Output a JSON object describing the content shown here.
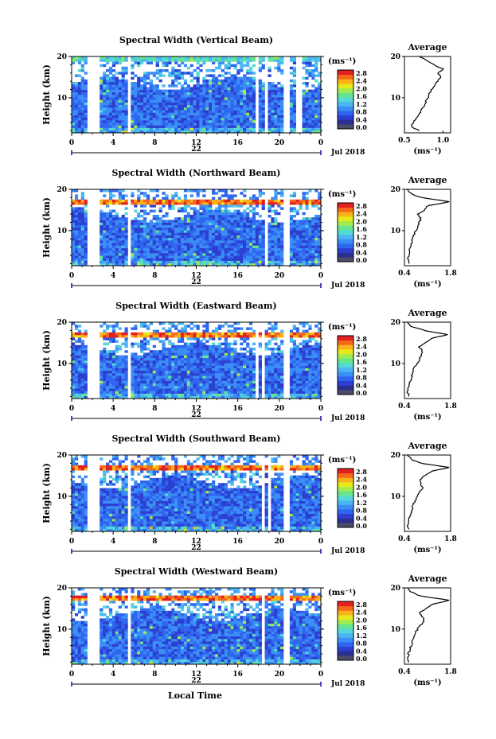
{
  "colors": {
    "background": "#ffffff",
    "colormap": [
      "#2b2f8f",
      "#2c3fd0",
      "#2f66ef",
      "#3a8ef6",
      "#4cb6f2",
      "#54d9d6",
      "#67e58e",
      "#a3ec4f",
      "#e6e91a",
      "#fbb21a",
      "#f56a1a",
      "#e32020"
    ],
    "colorbar_bottom": "#4b4b6a",
    "gap": "#ffffff",
    "axis": "#000000",
    "profile_line": "#000000",
    "accent_bar": "#5a3bbf"
  },
  "x_tick_labels": [
    "0",
    "4",
    "8",
    "12",
    "16",
    "20",
    "0"
  ],
  "y_tick_labels": [
    "20",
    "10"
  ],
  "date_label": "Jul 2018",
  "x_axis_title": "Local Time",
  "colorbar": {
    "unit_label": "(ms⁻¹)",
    "tick_labels": [
      "2.8",
      "2.4",
      "2.0",
      "1.6",
      "1.2",
      "0.8",
      "0.4",
      "0.0"
    ]
  },
  "profile_unit_label": "(ms⁻¹)",
  "panels": [
    {
      "title": "Spectral Width (Vertical Beam)",
      "ylabel": "Height (km)",
      "day_label": "22",
      "profile_title": "Average",
      "profile_x_ticks": [
        "0.5",
        "1.0"
      ],
      "profile_y_ticks": [
        "20",
        "10"
      ]
    },
    {
      "title": "Spectral Width (Northward Beam)",
      "ylabel": "Height (km)",
      "day_label": "22",
      "profile_title": "Average",
      "profile_x_ticks": [
        "0.4",
        "1.8"
      ],
      "profile_y_ticks": [
        "20",
        "10"
      ]
    },
    {
      "title": "Spectral Width (Eastward Beam)",
      "ylabel": "Height (km)",
      "day_label": "22",
      "profile_title": "Average",
      "profile_x_ticks": [
        "0.4",
        "1.8"
      ],
      "profile_y_ticks": [
        "20",
        "10"
      ]
    },
    {
      "title": "Spectral Width (Southward Beam)",
      "ylabel": "Height (km)",
      "day_label": "22",
      "profile_title": "Average",
      "profile_x_ticks": [
        "0.4",
        "1.8"
      ],
      "profile_y_ticks": [
        "20",
        "10"
      ]
    },
    {
      "title": "Spectral Width (Westward Beam)",
      "ylabel": "Height (km)",
      "day_label": "22",
      "profile_title": "Average",
      "profile_x_ticks": [
        "0.4",
        "1.8"
      ],
      "profile_y_ticks": [
        "20",
        "10"
      ]
    }
  ],
  "chart_data": [
    {
      "type": "heatmap",
      "title": "Spectral Width (Vertical Beam)",
      "xlabel": "",
      "ylabel": "Height (km)",
      "date": "Jul 2018",
      "x_range_hours": [
        0,
        24
      ],
      "y_range_km": [
        1.5,
        20
      ],
      "color_range_ms": [
        0.0,
        3.0
      ],
      "data_gaps_hours": [
        [
          1.4,
          2.6
        ],
        [
          5.4,
          5.8
        ],
        [
          17.7,
          17.9
        ],
        [
          18.5,
          18.8
        ],
        [
          20.3,
          20.9
        ],
        [
          21.7,
          22.2
        ]
      ],
      "band_top_km": 19.5,
      "band_top_value": 1.0,
      "average_profile": {
        "x_range_ms": [
          0.5,
          1.1
        ],
        "x_ticks": [
          0.5,
          1.0
        ],
        "height_km": [
          2.0,
          3.0,
          4.0,
          5.0,
          6.0,
          7.0,
          8.0,
          9.0,
          10.0,
          11.0,
          12.0,
          13.0,
          14.0,
          15.0,
          16.0,
          17.0,
          18.0,
          19.0,
          20.0
        ],
        "width_ms": [
          0.7,
          0.58,
          0.62,
          0.65,
          0.68,
          0.72,
          0.75,
          0.78,
          0.8,
          0.82,
          0.85,
          0.9,
          0.93,
          0.97,
          0.94,
          1.0,
          0.88,
          0.8,
          0.7
        ]
      }
    },
    {
      "type": "heatmap",
      "title": "Spectral Width (Northward Beam)",
      "xlabel": "",
      "ylabel": "Height (km)",
      "date": "Jul 2018",
      "x_range_hours": [
        0,
        24
      ],
      "y_range_km": [
        1.5,
        20
      ],
      "color_range_ms": [
        0.0,
        3.0
      ],
      "data_gaps_hours": [
        [
          1.4,
          2.6
        ],
        [
          5.4,
          5.8
        ],
        [
          17.6,
          17.8
        ],
        [
          18.6,
          19.0
        ],
        [
          20.3,
          20.9
        ]
      ],
      "band_top_km": 17.0,
      "band_top_value": 2.2,
      "average_profile": {
        "x_range_ms": [
          0.4,
          1.8
        ],
        "x_ticks": [
          0.4,
          1.8
        ],
        "height_km": [
          2.0,
          3.0,
          4.0,
          5.0,
          6.0,
          7.0,
          8.0,
          9.0,
          10.0,
          11.0,
          12.0,
          13.0,
          14.0,
          15.0,
          16.0,
          17.0,
          18.0,
          19.0,
          20.0
        ],
        "width_ms": [
          0.55,
          0.5,
          0.52,
          0.56,
          0.58,
          0.62,
          0.65,
          0.7,
          0.75,
          0.8,
          0.85,
          0.9,
          0.8,
          1.0,
          1.1,
          1.75,
          0.9,
          0.6,
          0.5
        ]
      }
    },
    {
      "type": "heatmap",
      "title": "Spectral Width (Eastward Beam)",
      "xlabel": "",
      "ylabel": "Height (km)",
      "date": "Jul 2018",
      "x_range_hours": [
        0,
        24
      ],
      "y_range_km": [
        1.5,
        20
      ],
      "color_range_ms": [
        0.0,
        3.0
      ],
      "data_gaps_hours": [
        [
          1.4,
          2.6
        ],
        [
          5.4,
          5.8
        ],
        [
          17.7,
          17.9
        ],
        [
          18.4,
          18.6
        ],
        [
          20.3,
          20.9
        ]
      ],
      "band_top_km": 17.0,
      "band_top_value": 2.2,
      "average_profile": {
        "x_range_ms": [
          0.4,
          1.8
        ],
        "x_ticks": [
          0.4,
          1.8
        ],
        "height_km": [
          2.0,
          3.0,
          4.0,
          5.0,
          6.0,
          7.0,
          8.0,
          9.0,
          10.0,
          11.0,
          12.0,
          13.0,
          14.0,
          15.0,
          16.0,
          17.0,
          18.0,
          19.0,
          20.0
        ],
        "width_ms": [
          0.55,
          0.5,
          0.52,
          0.55,
          0.58,
          0.62,
          0.65,
          0.7,
          0.78,
          0.85,
          0.9,
          0.95,
          0.85,
          1.05,
          1.2,
          1.7,
          1.0,
          0.6,
          0.5
        ]
      }
    },
    {
      "type": "heatmap",
      "title": "Spectral Width (Southward Beam)",
      "xlabel": "",
      "ylabel": "Height (km)",
      "date": "Jul 2018",
      "x_range_hours": [
        0,
        24
      ],
      "y_range_km": [
        1.5,
        20
      ],
      "color_range_ms": [
        0.0,
        3.0
      ],
      "data_gaps_hours": [
        [
          1.4,
          2.6
        ],
        [
          5.4,
          5.8
        ],
        [
          17.6,
          17.8
        ],
        [
          18.3,
          18.5
        ],
        [
          19.0,
          19.3
        ],
        [
          20.3,
          20.9
        ]
      ],
      "band_top_km": 17.0,
      "band_top_value": 2.2,
      "average_profile": {
        "x_range_ms": [
          0.4,
          1.8
        ],
        "x_ticks": [
          0.4,
          1.8
        ],
        "height_km": [
          2.0,
          3.0,
          4.0,
          5.0,
          6.0,
          7.0,
          8.0,
          9.0,
          10.0,
          11.0,
          12.0,
          13.0,
          14.0,
          15.0,
          16.0,
          17.0,
          18.0,
          19.0,
          20.0
        ],
        "width_ms": [
          0.55,
          0.5,
          0.52,
          0.56,
          0.6,
          0.64,
          0.68,
          0.72,
          0.8,
          0.88,
          0.95,
          0.9,
          0.85,
          1.0,
          1.2,
          1.75,
          0.9,
          0.6,
          0.5
        ]
      }
    },
    {
      "type": "heatmap",
      "title": "Spectral Width (Westward Beam)",
      "xlabel": "Local Time",
      "ylabel": "Height (km)",
      "date": "Jul 2018",
      "x_range_hours": [
        0,
        24
      ],
      "y_range_km": [
        1.5,
        20
      ],
      "color_range_ms": [
        0.0,
        3.0
      ],
      "data_gaps_hours": [
        [
          1.4,
          2.6
        ],
        [
          5.4,
          5.8
        ],
        [
          17.6,
          17.8
        ],
        [
          18.4,
          18.7
        ],
        [
          20.3,
          20.9
        ]
      ],
      "band_top_km": 17.5,
      "band_top_value": 2.2,
      "average_profile": {
        "x_range_ms": [
          0.4,
          1.8
        ],
        "x_ticks": [
          0.4,
          1.8
        ],
        "height_km": [
          2.0,
          3.0,
          4.0,
          5.0,
          6.0,
          7.0,
          8.0,
          9.0,
          10.0,
          11.0,
          12.0,
          13.0,
          14.0,
          15.0,
          16.0,
          17.0,
          18.0,
          19.0,
          20.0
        ],
        "width_ms": [
          0.55,
          0.5,
          0.52,
          0.56,
          0.6,
          0.64,
          0.68,
          0.72,
          0.8,
          0.9,
          1.0,
          0.95,
          0.85,
          1.05,
          1.25,
          1.75,
          0.9,
          0.6,
          0.5
        ]
      }
    }
  ]
}
